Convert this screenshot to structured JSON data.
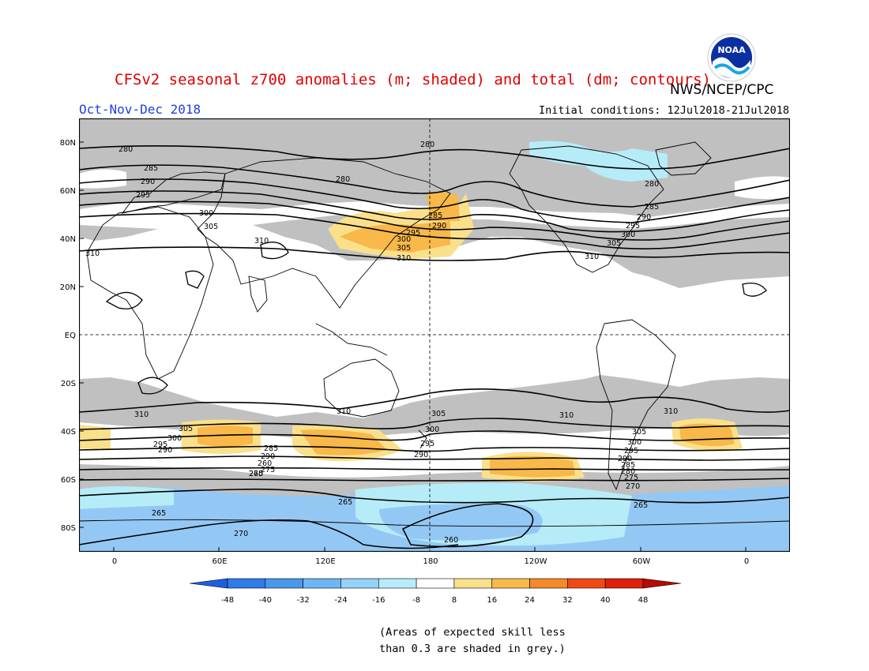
{
  "header": {
    "title": "CFSv2 seasonal z700 anomalies (m; shaded) and total (dm; contours)",
    "agency": "NWS/NCEP/CPC",
    "period": "Oct-Nov-Dec 2018",
    "initial_conditions": "Initial conditions: 12Jul2018-21Jul2018",
    "logo_text": "NOAA"
  },
  "map": {
    "lat_labels": [
      "80N",
      "60N",
      "40N",
      "20N",
      "EQ",
      "20S",
      "40S",
      "60S",
      "80S"
    ],
    "lon_labels": [
      "0",
      "60E",
      "120E",
      "180",
      "120W",
      "60W",
      "0"
    ],
    "contour_labels": [
      "280",
      "285",
      "290",
      "295",
      "300",
      "305",
      "310",
      "265",
      "270",
      "275",
      "260"
    ],
    "colors": {
      "skill_grey": "#c0c0c0",
      "pos_light": "#fae08a",
      "pos_mid": "#f8b84a",
      "neg_light": "#b6ecf8",
      "neg_mid": "#94c8f4",
      "contour": "#000000"
    }
  },
  "colorbar": {
    "labels": [
      "-48",
      "-40",
      "-32",
      "-24",
      "-16",
      "-8",
      "8",
      "16",
      "24",
      "32",
      "40",
      "48"
    ],
    "colors": [
      "#1c5fe0",
      "#2f7be8",
      "#4a98ec",
      "#6db6f4",
      "#94d2f8",
      "#b8ecfa",
      "#ffffff",
      "#fae08a",
      "#f8b84a",
      "#f48a28",
      "#f04a12",
      "#e0200a",
      "#b80808"
    ]
  },
  "footnote": {
    "line1": "(Areas of expected skill less",
    "line2": "than 0.3 are shaded in grey.)"
  }
}
